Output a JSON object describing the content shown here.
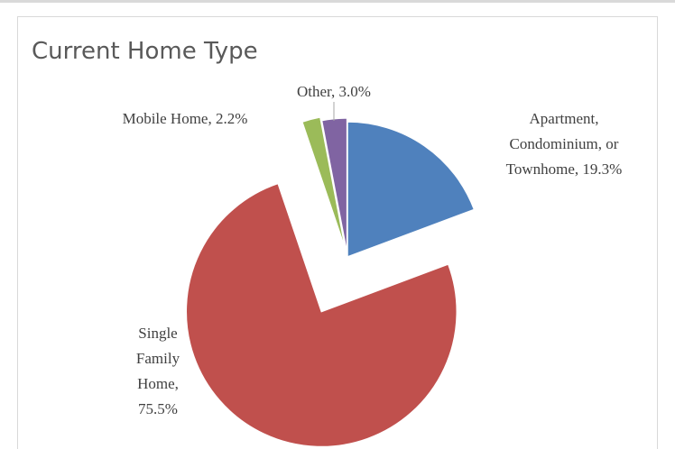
{
  "chart_data": {
    "type": "pie",
    "title": "Current Home Type",
    "categories": [
      "Apartment, Condominium, or Townhome",
      "Single Family Home",
      "Mobile Home",
      "Other"
    ],
    "values": [
      19.3,
      75.5,
      2.2,
      3.0
    ],
    "value_labels": [
      "19.3%",
      "75.5%",
      "2.2%",
      "3.0%"
    ],
    "colors": [
      "#4f81bd",
      "#c0504d",
      "#9bbb59",
      "#8064a2"
    ]
  }
}
